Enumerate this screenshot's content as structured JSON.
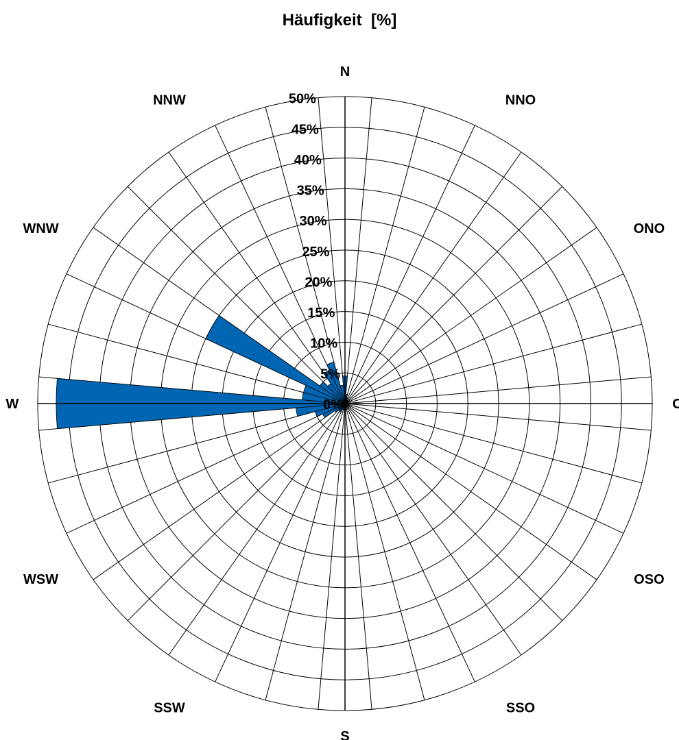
{
  "chart_data": {
    "type": "polar-bar",
    "title": "Häufigkeit  [%]",
    "directions": [
      "N",
      "NNO",
      "ONO",
      "O",
      "OSO",
      "SSO",
      "S",
      "SSW",
      "WSW",
      "W",
      "WNW",
      "NNW"
    ],
    "radial_ticks": [
      "0%",
      "5%",
      "10%",
      "15%",
      "20%",
      "25%",
      "30%",
      "35%",
      "40%",
      "45%",
      "50%"
    ],
    "rmax": 50,
    "sector_count": 36,
    "grid": true,
    "bar_color": "#0066b3",
    "series": [
      {
        "values": [
          {
            "bearing": 0,
            "value": 4.5
          },
          {
            "bearing": 10,
            "value": 1.5
          },
          {
            "bearing": 20,
            "value": 1
          },
          {
            "bearing": 30,
            "value": 0.5
          },
          {
            "bearing": 40,
            "value": 0.5
          },
          {
            "bearing": 50,
            "value": 0.5
          },
          {
            "bearing": 60,
            "value": 0.5
          },
          {
            "bearing": 70,
            "value": 0.5
          },
          {
            "bearing": 80,
            "value": 0.5
          },
          {
            "bearing": 90,
            "value": 0.5
          },
          {
            "bearing": 100,
            "value": 0.5
          },
          {
            "bearing": 110,
            "value": 0.5
          },
          {
            "bearing": 120,
            "value": 0.5
          },
          {
            "bearing": 130,
            "value": 0.5
          },
          {
            "bearing": 140,
            "value": 0.5
          },
          {
            "bearing": 150,
            "value": 0.5
          },
          {
            "bearing": 160,
            "value": 0.5
          },
          {
            "bearing": 170,
            "value": 1
          },
          {
            "bearing": 180,
            "value": 1
          },
          {
            "bearing": 190,
            "value": 1
          },
          {
            "bearing": 200,
            "value": 1
          },
          {
            "bearing": 210,
            "value": 1.5
          },
          {
            "bearing": 220,
            "value": 1.5
          },
          {
            "bearing": 230,
            "value": 2
          },
          {
            "bearing": 240,
            "value": 4
          },
          {
            "bearing": 250,
            "value": 5
          },
          {
            "bearing": 260,
            "value": 8
          },
          {
            "bearing": 270,
            "value": 47
          },
          {
            "bearing": 280,
            "value": 7
          },
          {
            "bearing": 290,
            "value": 7
          },
          {
            "bearing": 300,
            "value": 25
          },
          {
            "bearing": 310,
            "value": 5
          },
          {
            "bearing": 320,
            "value": 4
          },
          {
            "bearing": 330,
            "value": 6
          },
          {
            "bearing": 340,
            "value": 7
          },
          {
            "bearing": 350,
            "value": 3
          }
        ]
      }
    ]
  }
}
